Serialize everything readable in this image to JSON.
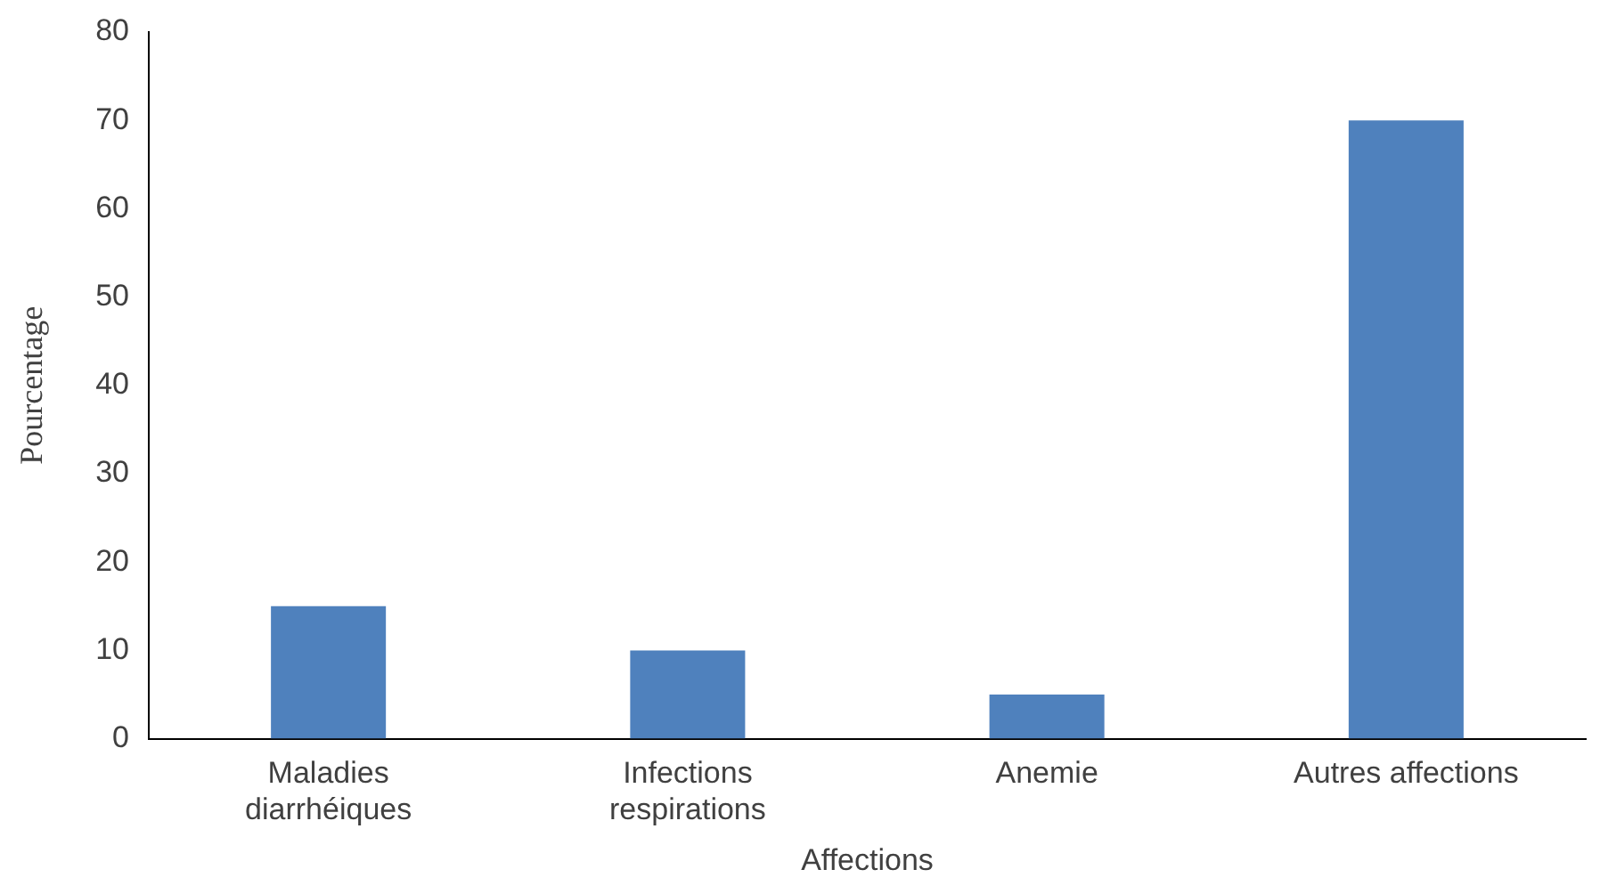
{
  "chart_data": {
    "type": "bar",
    "xlabel": "Affections",
    "ylabel": "Pourcentage",
    "categories": [
      "Maladies diarrhéiques",
      "Infections respirations",
      "Anemie",
      "Autres affections"
    ],
    "values": [
      15,
      10,
      5,
      70
    ],
    "color": "#4f81bd",
    "ylim": [
      0,
      80
    ],
    "yticks": [
      0,
      10,
      20,
      30,
      40,
      50,
      60,
      70,
      80
    ],
    "grid": false,
    "legend": false
  }
}
